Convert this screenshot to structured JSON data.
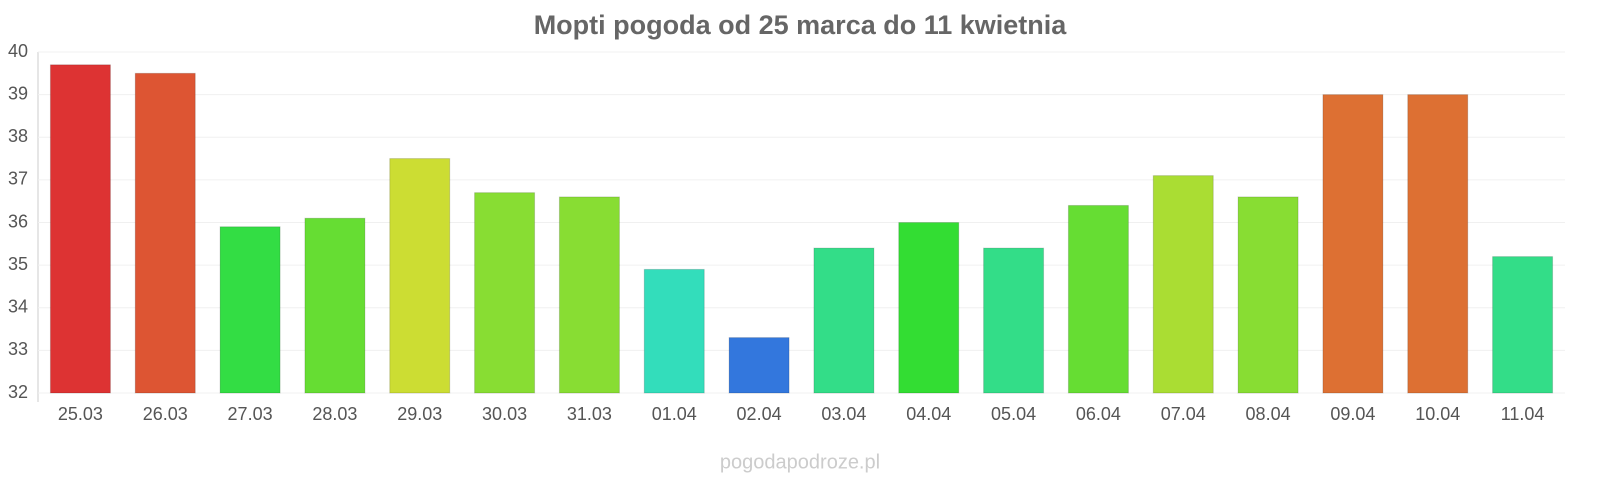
{
  "chart_data": {
    "type": "bar",
    "title": "Mopti pogoda od 25 marca do 11 kwietnia",
    "categories": [
      "25.03",
      "26.03",
      "27.03",
      "28.03",
      "29.03",
      "30.03",
      "31.03",
      "01.04",
      "02.04",
      "03.04",
      "04.04",
      "05.04",
      "06.04",
      "07.04",
      "08.04",
      "09.04",
      "10.04",
      "11.04"
    ],
    "values": [
      39.7,
      39.5,
      35.9,
      36.1,
      37.5,
      36.7,
      36.6,
      34.9,
      33.3,
      35.4,
      36.0,
      35.4,
      36.4,
      37.1,
      36.6,
      39.0,
      39.0,
      35.2
    ],
    "colors": [
      "#dd3333",
      "#dd5533",
      "#33dd44",
      "#66dd33",
      "#ccdd33",
      "#88dd33",
      "#88dd33",
      "#33ddbb",
      "#3377dd",
      "#33dd88",
      "#33dd33",
      "#33dd88",
      "#66dd33",
      "#aadd33",
      "#88dd33",
      "#dd7033",
      "#dd7033",
      "#33dd88"
    ],
    "ylim": [
      32,
      40
    ],
    "yticks": [
      32,
      33,
      34,
      35,
      36,
      37,
      38,
      39,
      40
    ],
    "grid": true,
    "footer": "pogodapodroze.pl"
  }
}
